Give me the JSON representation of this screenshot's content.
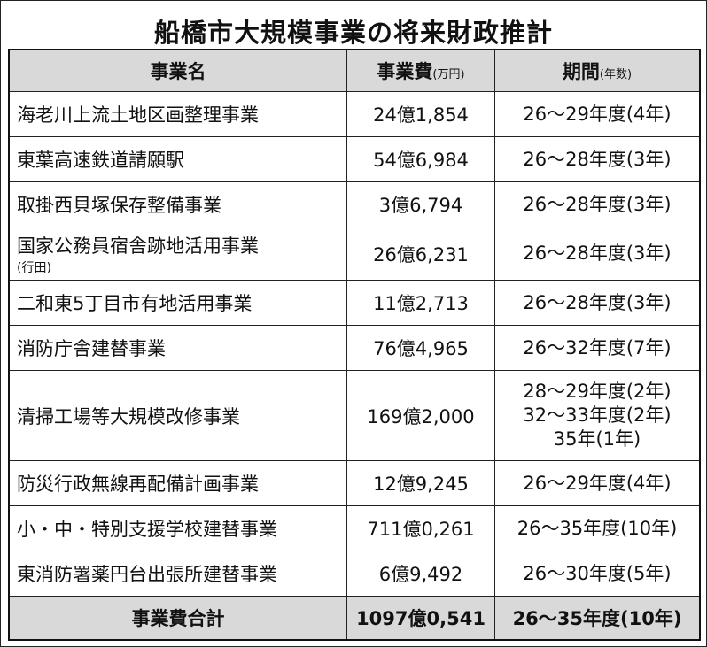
{
  "title": "船橋市大規模事業の将来財政推計",
  "headers": {
    "name": "事業名",
    "cost": "事業費",
    "cost_unit": "(万円)",
    "period": "期間",
    "period_unit": "(年数)"
  },
  "rows": [
    {
      "name": "海老川上流土地区画整理事業",
      "cost": "24億1,854",
      "period": [
        "26～29年度(4年)"
      ]
    },
    {
      "name": "東葉高速鉄道請願駅",
      "cost": "54億6,984",
      "period": [
        "26～28年度(3年)"
      ]
    },
    {
      "name": "取掛西貝塚保存整備事業",
      "cost": "3億6,794",
      "period": [
        "26～28年度(3年)"
      ]
    },
    {
      "name": "国家公務員宿舎跡地活用事業",
      "note": "(行田)",
      "cost": "26億6,231",
      "period": [
        "26～28年度(3年)"
      ]
    },
    {
      "name": "二和東5丁目市有地活用事業",
      "cost": "11億2,713",
      "period": [
        "26～28年度(3年)"
      ]
    },
    {
      "name": "消防庁舎建替事業",
      "cost": "76億4,965",
      "period": [
        "26～32年度(7年)"
      ]
    },
    {
      "name": "清掃工場等大規模改修事業",
      "cost": "169億2,000",
      "period": [
        "28～29年度(2年)",
        "32～33年度(2年)",
        "35年(1年)"
      ]
    },
    {
      "name": "防災行政無線再配備計画事業",
      "cost": "12億9,245",
      "period": [
        "26～29年度(4年)"
      ]
    },
    {
      "name": "小・中・特別支援学校建替事業",
      "cost": "711億0,261",
      "period": [
        "26～35年度(10年)"
      ]
    },
    {
      "name": "東消防署薬円台出張所建替事業",
      "cost": "6億9,492",
      "period": [
        "26～30年度(5年)"
      ]
    }
  ],
  "total": {
    "label": "事業費合計",
    "cost": "1097億0,541",
    "period": "26～35年度(10年)"
  }
}
